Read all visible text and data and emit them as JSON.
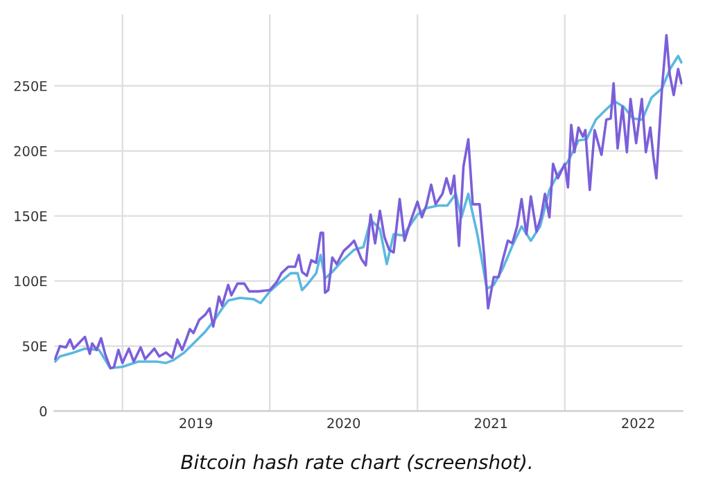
{
  "chart_data": {
    "type": "line",
    "xlim": [
      "2018-07-16",
      "2022-10-20"
    ],
    "xticks": [
      {
        "value": "2019-01-01",
        "label": null
      },
      {
        "value": "2019-07-02",
        "label": "2019"
      },
      {
        "value": "2020-01-01",
        "label": null
      },
      {
        "value": "2020-07-02",
        "label": "2020"
      },
      {
        "value": "2021-01-01",
        "label": null
      },
      {
        "value": "2021-07-02",
        "label": "2021"
      },
      {
        "value": "2022-01-01",
        "label": null
      },
      {
        "value": "2022-07-02",
        "label": "2022"
      }
    ],
    "ylim": [
      0,
      305
    ],
    "yticks": [
      0,
      {
        "value": 50,
        "label": "50E"
      },
      {
        "value": 100,
        "label": "100E"
      },
      {
        "value": 150,
        "label": "150E"
      },
      {
        "value": 200,
        "label": "200E"
      },
      {
        "value": 250,
        "label": "250E"
      }
    ],
    "grid": true,
    "legend": false,
    "marker": "none",
    "line_style": "solid",
    "annotations": [
      "Bitcoin hash rate chart (screenshot)."
    ],
    "series": [
      {
        "color": "#5bb8e0",
        "x": [
          "2018-07-18",
          "2018-07-30",
          "2018-09-02",
          "2018-09-30",
          "2018-11-04",
          "2018-12-02",
          "2019-01-01",
          "2019-02-09",
          "2019-03-27",
          "2019-04-19",
          "2019-05-06",
          "2019-06-03",
          "2019-06-26",
          "2019-07-25",
          "2019-08-17",
          "2019-09-03",
          "2019-09-20",
          "2019-10-19",
          "2019-11-22",
          "2019-12-09",
          "2020-01-01",
          "2020-01-30",
          "2020-02-22",
          "2020-03-10",
          "2020-03-21",
          "2020-04-02",
          "2020-04-25",
          "2020-05-06",
          "2020-05-17",
          "2020-06-04",
          "2020-06-27",
          "2020-07-28",
          "2020-08-20",
          "2020-09-07",
          "2020-09-30",
          "2020-10-17",
          "2020-11-03",
          "2020-11-26",
          "2021-01-01",
          "2021-01-23",
          "2021-02-21",
          "2021-03-16",
          "2021-04-06",
          "2021-04-20",
          "2021-05-07",
          "2021-05-30",
          "2021-06-22",
          "2021-07-09",
          "2021-08-01",
          "2021-08-24",
          "2021-09-16",
          "2021-10-09",
          "2021-11-01",
          "2021-11-24",
          "2021-12-17",
          "2022-01-09",
          "2022-02-04",
          "2022-02-24",
          "2022-03-19",
          "2022-04-14",
          "2022-05-05",
          "2022-05-27",
          "2022-06-19",
          "2022-07-12",
          "2022-08-04",
          "2022-08-30",
          "2022-09-19",
          "2022-10-09",
          "2022-10-17"
        ],
        "values": [
          38,
          42,
          45,
          48,
          47,
          33,
          34,
          38,
          38,
          37,
          39,
          45,
          52,
          61,
          70,
          78,
          85,
          87,
          86,
          83,
          92,
          100,
          106,
          106,
          93,
          97,
          106,
          120,
          102,
          107,
          115,
          124,
          126,
          147,
          140,
          113,
          136,
          135,
          151,
          156,
          158,
          158,
          167,
          149,
          167,
          135,
          94,
          97,
          110,
          127,
          142,
          131,
          142,
          170,
          183,
          192,
          208,
          209,
          224,
          232,
          238,
          234,
          225,
          224,
          241,
          248,
          263,
          273,
          268
        ]
      },
      {
        "color": "#7b5fd9",
        "x": [
          "2018-07-18",
          "2018-07-30",
          "2018-08-14",
          "2018-08-24",
          "2018-09-02",
          "2018-09-30",
          "2018-10-12",
          "2018-10-18",
          "2018-10-29",
          "2018-11-09",
          "2018-11-19",
          "2018-12-02",
          "2018-12-11",
          "2018-12-22",
          "2019-01-01",
          "2019-01-17",
          "2019-01-29",
          "2019-02-15",
          "2019-02-26",
          "2019-03-21",
          "2019-04-02",
          "2019-04-19",
          "2019-05-04",
          "2019-05-17",
          "2019-05-29",
          "2019-06-09",
          "2019-06-17",
          "2019-06-26",
          "2019-07-10",
          "2019-07-25",
          "2019-08-05",
          "2019-08-14",
          "2019-08-28",
          "2019-09-05",
          "2019-09-20",
          "2019-09-28",
          "2019-10-13",
          "2019-10-30",
          "2019-11-11",
          "2019-12-04",
          "2020-01-01",
          "2020-01-18",
          "2020-01-30",
          "2020-02-16",
          "2020-03-04",
          "2020-03-13",
          "2020-03-21",
          "2020-04-02",
          "2020-04-13",
          "2020-04-25",
          "2020-05-06",
          "2020-05-12",
          "2020-05-17",
          "2020-05-25",
          "2020-06-04",
          "2020-06-15",
          "2020-07-02",
          "2020-07-16",
          "2020-07-28",
          "2020-08-15",
          "2020-08-26",
          "2020-09-07",
          "2020-09-18",
          "2020-09-30",
          "2020-10-11",
          "2020-10-23",
          "2020-11-03",
          "2020-11-18",
          "2020-11-30",
          "2020-12-14",
          "2021-01-01",
          "2021-01-12",
          "2021-01-23",
          "2021-02-04",
          "2021-02-15",
          "2021-03-04",
          "2021-03-14",
          "2021-03-25",
          "2021-04-02",
          "2021-04-14",
          "2021-04-25",
          "2021-05-07",
          "2021-05-18",
          "2021-06-04",
          "2021-06-16",
          "2021-06-25",
          "2021-07-09",
          "2021-07-21",
          "2021-08-01",
          "2021-08-13",
          "2021-08-24",
          "2021-09-05",
          "2021-09-16",
          "2021-09-28",
          "2021-10-09",
          "2021-10-23",
          "2021-11-03",
          "2021-11-13",
          "2021-11-24",
          "2021-12-03",
          "2021-12-15",
          "2022-01-01",
          "2022-01-09",
          "2022-01-17",
          "2022-01-25",
          "2022-02-04",
          "2022-02-15",
          "2022-02-21",
          "2022-03-04",
          "2022-03-16",
          "2022-04-02",
          "2022-04-14",
          "2022-04-25",
          "2022-05-02",
          "2022-05-12",
          "2022-05-24",
          "2022-06-04",
          "2022-06-13",
          "2022-06-27",
          "2022-07-11",
          "2022-07-21",
          "2022-08-01",
          "2022-08-09",
          "2022-08-16",
          "2022-08-30",
          "2022-09-10",
          "2022-09-18",
          "2022-09-28",
          "2022-10-09",
          "2022-10-17"
        ],
        "values": [
          40,
          50,
          49,
          55,
          48,
          57,
          44,
          52,
          47,
          56,
          44,
          33,
          34,
          47,
          37,
          48,
          38,
          49,
          40,
          48,
          42,
          45,
          41,
          55,
          47,
          56,
          63,
          60,
          70,
          74,
          79,
          65,
          88,
          81,
          97,
          89,
          98,
          98,
          92,
          92,
          93,
          99,
          106,
          111,
          111,
          120,
          107,
          104,
          116,
          114,
          137,
          137,
          91,
          93,
          118,
          113,
          123,
          127,
          131,
          117,
          112,
          151,
          129,
          154,
          134,
          124,
          122,
          163,
          131,
          145,
          161,
          149,
          158,
          174,
          159,
          167,
          179,
          167,
          181,
          127,
          188,
          209,
          159,
          159,
          117,
          79,
          103,
          103,
          117,
          131,
          129,
          142,
          163,
          136,
          165,
          138,
          149,
          167,
          149,
          190,
          179,
          190,
          172,
          220,
          199,
          218,
          211,
          216,
          170,
          216,
          197,
          224,
          225,
          252,
          202,
          234,
          199,
          240,
          206,
          240,
          199,
          218,
          195,
          179,
          248,
          289,
          259,
          243,
          263,
          252
        ]
      }
    ]
  }
}
